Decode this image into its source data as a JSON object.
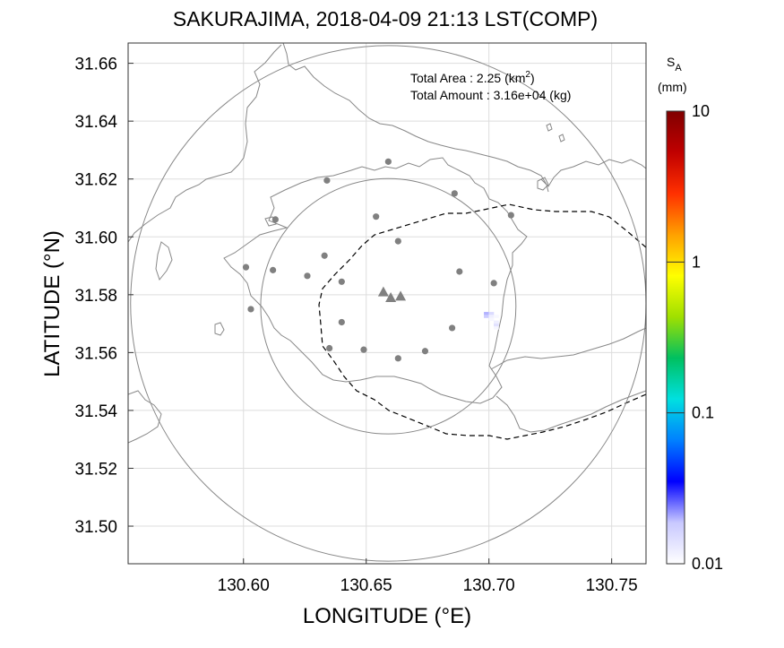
{
  "title": "SAKURAJIMA, 2018-04-09 21:13 LST(COMP)",
  "xlabel": "LONGITUDE (°E)",
  "ylabel": "LATITUDE (°N)",
  "info": {
    "area_label": "Total Area   : 2.25 (km",
    "area_sup": "2",
    "area_close": ")",
    "amount_label": "Total Amount : 3.16e+04 (kg)"
  },
  "colorbar": {
    "symbol": "S",
    "subscript": "A",
    "unit": "(mm)",
    "ticks": [
      {
        "value": 10,
        "label": "10"
      },
      {
        "value": 1,
        "label": "1"
      },
      {
        "value": 0.1,
        "label": "0.1"
      },
      {
        "value": 0.01,
        "label": "0.01"
      }
    ],
    "colors": [
      "#ffffff",
      "#c8c8ff",
      "#0000ff",
      "#0080ff",
      "#00e0e0",
      "#00c060",
      "#a0e000",
      "#ffff00",
      "#ffa000",
      "#ff3000",
      "#c00000",
      "#800000"
    ]
  },
  "chart_data": {
    "type": "map",
    "xlim": [
      130.553,
      130.764
    ],
    "ylim": [
      31.487,
      31.667
    ],
    "x_ticks": [
      {
        "value": 130.6,
        "label": "130.60"
      },
      {
        "value": 130.65,
        "label": "130.65"
      },
      {
        "value": 130.7,
        "label": "130.70"
      },
      {
        "value": 130.75,
        "label": "130.75"
      }
    ],
    "y_ticks": [
      {
        "value": 31.5,
        "label": "31.50"
      },
      {
        "value": 31.52,
        "label": "31.52"
      },
      {
        "value": 31.54,
        "label": "31.54"
      },
      {
        "value": 31.56,
        "label": "31.56"
      },
      {
        "value": 31.58,
        "label": "31.58"
      },
      {
        "value": 31.6,
        "label": "31.60"
      },
      {
        "value": 31.62,
        "label": "31.62"
      },
      {
        "value": 31.64,
        "label": "31.64"
      },
      {
        "value": 31.66,
        "label": "31.66"
      }
    ],
    "grid": true,
    "vents": [
      {
        "lon": 130.657,
        "lat": 31.581
      },
      {
        "lon": 130.66,
        "lat": 31.579
      },
      {
        "lon": 130.664,
        "lat": 31.5795
      }
    ],
    "stations": [
      {
        "lon": 130.659,
        "lat": 31.626
      },
      {
        "lon": 130.634,
        "lat": 31.6195
      },
      {
        "lon": 130.686,
        "lat": 31.615
      },
      {
        "lon": 130.613,
        "lat": 31.606
      },
      {
        "lon": 130.654,
        "lat": 31.607
      },
      {
        "lon": 130.709,
        "lat": 31.6075
      },
      {
        "lon": 130.663,
        "lat": 31.5985
      },
      {
        "lon": 130.601,
        "lat": 31.5895
      },
      {
        "lon": 130.612,
        "lat": 31.5885
      },
      {
        "lon": 130.633,
        "lat": 31.5935
      },
      {
        "lon": 130.688,
        "lat": 31.588
      },
      {
        "lon": 130.626,
        "lat": 31.5865
      },
      {
        "lon": 130.64,
        "lat": 31.5845
      },
      {
        "lon": 130.702,
        "lat": 31.584
      },
      {
        "lon": 130.603,
        "lat": 31.575
      },
      {
        "lon": 130.64,
        "lat": 31.5705
      },
      {
        "lon": 130.685,
        "lat": 31.5685
      },
      {
        "lon": 130.635,
        "lat": 31.5615
      },
      {
        "lon": 130.649,
        "lat": 31.561
      },
      {
        "lon": 130.674,
        "lat": 31.5605
      },
      {
        "lon": 130.663,
        "lat": 31.558
      }
    ],
    "circles": [
      {
        "lon": 130.659,
        "lat": 31.576,
        "radius_lon": 0.052
      },
      {
        "lon": 130.659,
        "lat": 31.577,
        "radius_lon": 0.105
      }
    ],
    "ash_cells": [
      {
        "lon": 130.699,
        "lat": 31.5735,
        "value": 0.02
      },
      {
        "lon": 130.701,
        "lat": 31.5735,
        "value": 0.015
      },
      {
        "lon": 130.699,
        "lat": 31.5725,
        "value": 0.018
      },
      {
        "lon": 130.701,
        "lat": 31.5725,
        "value": 0.012
      },
      {
        "lon": 130.703,
        "lat": 31.5725,
        "value": 0.011
      },
      {
        "lon": 130.701,
        "lat": 31.5715,
        "value": 0.011
      },
      {
        "lon": 130.703,
        "lat": 31.5705,
        "value": 0.012
      },
      {
        "lon": 130.703,
        "lat": 31.5695,
        "value": 0.014
      },
      {
        "lon": 130.703,
        "lat": 31.5685,
        "value": 0.011
      }
    ]
  }
}
